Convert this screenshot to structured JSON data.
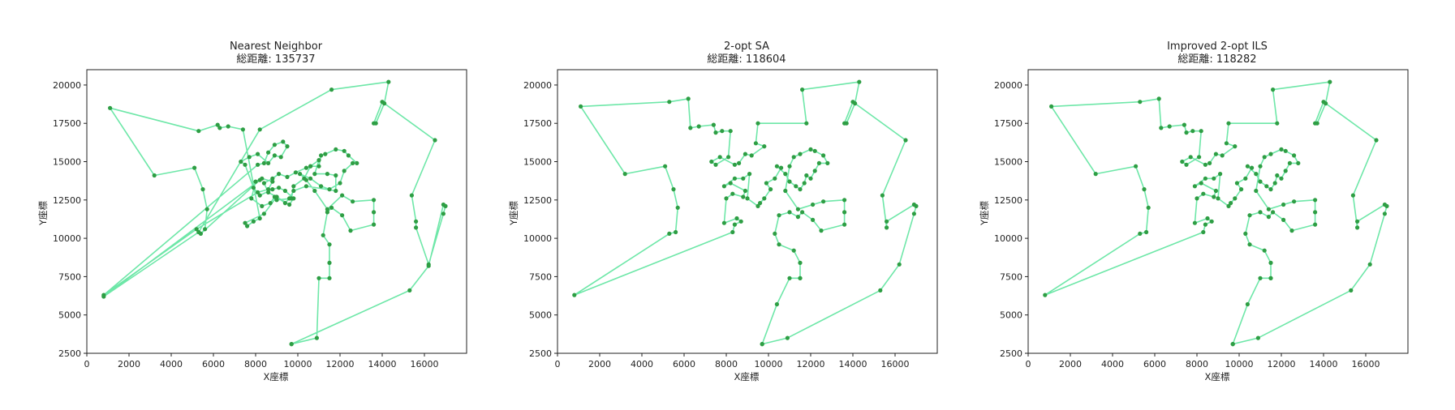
{
  "figure": {
    "colors": {
      "route": "#6ee7a8",
      "point": "#2e9e44",
      "axis": "#222222",
      "background": "#ffffff"
    }
  },
  "chart_data": [
    {
      "type": "line",
      "title": "Nearest Neighbor",
      "subtitle": "総距離: 135737",
      "xlabel": "X座標",
      "ylabel": "Y座標",
      "xlim": [
        0,
        18000
      ],
      "ylim": [
        2500,
        21000
      ],
      "xticks": [
        "0",
        "2000",
        "4000",
        "6000",
        "8000",
        "10000",
        "12000",
        "14000",
        "16000"
      ],
      "yticks": [
        "2500",
        "5000",
        "7500",
        "10000",
        "12500",
        "15000",
        "17500",
        "20000"
      ],
      "grid": false,
      "series": [
        {
          "x": [
            9700,
            10900,
            11000,
            11500,
            11500,
            11500,
            11200,
            11400,
            11600,
            12100,
            12500,
            13600,
            13600,
            13600,
            12600,
            12100,
            11400,
            10800,
            10400,
            10100,
            10600,
            11100,
            11500,
            12000,
            12200,
            12600,
            12800,
            12400,
            12200,
            11800,
            11300,
            11100,
            11000,
            10600,
            10400,
            9900,
            9500,
            9100,
            8800,
            8400,
            8600,
            9000,
            9600,
            9800,
            9400,
            9100,
            8800,
            8200,
            7900,
            7500,
            7300,
            7700,
            8100,
            8600,
            8900,
            9200,
            9500,
            9300,
            8900,
            8600,
            8400,
            8100,
            800,
            5200,
            8100,
            8600,
            8800,
            8300,
            8000,
            7800,
            8300,
            8700,
            8900,
            9000,
            9700,
            9800,
            10300,
            10600,
            11000,
            10800,
            11400,
            11800,
            11800,
            10400,
            9800,
            9600,
            9400,
            9000,
            8400,
            7500,
            7600,
            7900,
            8200,
            7400,
            6700,
            6300,
            6200,
            5300,
            1100,
            3200,
            5100,
            5500,
            5700,
            5600,
            5400,
            8200,
            800,
            5300,
            8200,
            11600,
            14300,
            14100,
            13700,
            13600,
            14000,
            16500,
            15400,
            15600,
            15600,
            16200,
            16900,
            17000,
            16900,
            16200,
            15300,
            9700
          ],
          "y": [
            3100,
            3500,
            7400,
            7400,
            8400,
            9600,
            10200,
            11700,
            12000,
            11500,
            10500,
            10900,
            11700,
            12500,
            12400,
            12800,
            11900,
            13100,
            13800,
            14200,
            13900,
            13400,
            13200,
            13600,
            14400,
            14900,
            14900,
            15400,
            15700,
            15800,
            15500,
            15400,
            14700,
            14700,
            14600,
            14300,
            14000,
            14200,
            13900,
            13600,
            13000,
            12700,
            12200,
            12600,
            13100,
            13300,
            13200,
            12800,
            13300,
            14800,
            15000,
            15300,
            15500,
            14900,
            15400,
            15300,
            16000,
            16300,
            16100,
            15600,
            14900,
            14800,
            6300,
            10600,
            13000,
            13200,
            13700,
            13900,
            13700,
            12600,
            12100,
            12300,
            12700,
            12500,
            12600,
            13400,
            13900,
            14700,
            15100,
            14200,
            14200,
            14100,
            13100,
            13400,
            13100,
            12600,
            12300,
            12700,
            11600,
            11000,
            10800,
            11100,
            11300,
            17100,
            17300,
            17200,
            17400,
            17000,
            18500,
            14100,
            14600,
            13200,
            11900,
            10600,
            10300,
            13800,
            6200,
            10400,
            17100,
            19700,
            20200,
            18800,
            17500,
            17500,
            18900,
            16400,
            12800,
            11100,
            10700,
            8300,
            11600,
            12100,
            12200,
            8200,
            6600,
            3100
          ]
        }
      ]
    },
    {
      "type": "line",
      "title": "2-opt SA",
      "subtitle": "総距離: 118604",
      "xlabel": "X座標",
      "ylabel": "Y座標",
      "xlim": [
        0,
        18000
      ],
      "ylim": [
        2500,
        21000
      ],
      "xticks": [
        "0",
        "2000",
        "4000",
        "6000",
        "8000",
        "10000",
        "12000",
        "14000",
        "16000"
      ],
      "yticks": [
        "2500",
        "5000",
        "7500",
        "10000",
        "12500",
        "15000",
        "17500",
        "20000"
      ],
      "grid": false,
      "series": [
        {
          "x": [
            9700,
            10900,
            15300,
            16200,
            16900,
            17000,
            16900,
            15600,
            15600,
            15400,
            16500,
            14000,
            13600,
            13700,
            14100,
            14300,
            11600,
            11800,
            9500,
            9400,
            9800,
            9200,
            8900,
            8600,
            8400,
            7700,
            7300,
            7500,
            8100,
            8200,
            7800,
            7500,
            7400,
            6700,
            6300,
            6200,
            5300,
            1100,
            3200,
            5100,
            5500,
            5700,
            5600,
            5300,
            800,
            8300,
            8400,
            8700,
            8500,
            7900,
            8000,
            8300,
            8800,
            8900,
            8200,
            7900,
            8400,
            8800,
            9100,
            9000,
            9500,
            9600,
            9800,
            10100,
            9900,
            10300,
            10600,
            10400,
            10800,
            11000,
            11300,
            11500,
            11700,
            11800,
            12000,
            12200,
            12400,
            12800,
            12600,
            12200,
            12000,
            11500,
            11200,
            11000,
            10800,
            11400,
            12100,
            12600,
            13600,
            13600,
            13600,
            12500,
            12100,
            11600,
            11400,
            11000,
            10500,
            10300,
            10500,
            11200,
            11500,
            11500,
            11500,
            11000,
            10400,
            9700
          ],
          "y": [
            3100,
            3500,
            6600,
            8300,
            11600,
            12100,
            12200,
            11100,
            10700,
            12800,
            16400,
            18900,
            17500,
            17500,
            18800,
            20200,
            19700,
            17500,
            17500,
            16200,
            16000,
            15400,
            15500,
            14900,
            14800,
            15300,
            15000,
            14800,
            15300,
            17000,
            17000,
            16900,
            17400,
            17300,
            17200,
            19100,
            18900,
            18600,
            14200,
            14700,
            13200,
            12000,
            10400,
            10300,
            6300,
            10400,
            10900,
            11100,
            11300,
            11000,
            12600,
            12900,
            12700,
            13100,
            13600,
            13400,
            13900,
            13900,
            14200,
            12600,
            12100,
            12300,
            12600,
            13200,
            13600,
            13900,
            14600,
            14700,
            14200,
            13700,
            13400,
            13200,
            13600,
            14100,
            13900,
            14400,
            14900,
            14900,
            15400,
            15700,
            15800,
            15500,
            15300,
            14700,
            13100,
            11900,
            12200,
            12400,
            12500,
            11700,
            10900,
            10500,
            11200,
            11700,
            11400,
            11700,
            11500,
            10300,
            9600,
            9200,
            8400,
            7400,
            7400,
            7400,
            5700,
            3100
          ]
        }
      ]
    },
    {
      "type": "line",
      "title": "Improved 2-opt ILS",
      "subtitle": "総距離: 118282",
      "xlabel": "X座標",
      "ylabel": "Y座標",
      "xlim": [
        0,
        18000
      ],
      "ylim": [
        2500,
        21000
      ],
      "xticks": [
        "0",
        "2000",
        "4000",
        "6000",
        "8000",
        "10000",
        "12000",
        "14000",
        "16000"
      ],
      "yticks": [
        "2500",
        "5000",
        "7500",
        "10000",
        "12500",
        "15000",
        "17500",
        "20000"
      ],
      "grid": false,
      "series": [
        {
          "x": [
            9700,
            10900,
            15300,
            16200,
            16900,
            17000,
            16900,
            15600,
            15600,
            15400,
            16500,
            14000,
            13600,
            13700,
            14100,
            14300,
            11600,
            11800,
            9500,
            9400,
            9800,
            9200,
            8900,
            8600,
            8400,
            7700,
            7300,
            7500,
            8100,
            8200,
            7800,
            7500,
            7400,
            6700,
            6300,
            6200,
            5300,
            1100,
            3200,
            5100,
            5500,
            5700,
            5600,
            5300,
            800,
            8300,
            8400,
            8700,
            8500,
            7900,
            8000,
            8300,
            8800,
            8900,
            8200,
            7900,
            8400,
            8800,
            9100,
            9000,
            9500,
            9600,
            9800,
            10100,
            9900,
            10300,
            10600,
            10400,
            10800,
            11000,
            11300,
            11500,
            11700,
            11800,
            12000,
            12200,
            12400,
            12800,
            12600,
            12200,
            12000,
            11500,
            11200,
            11000,
            10800,
            11400,
            12100,
            12600,
            13600,
            13600,
            13600,
            12500,
            12100,
            11600,
            11400,
            11000,
            10500,
            10300,
            10500,
            11200,
            11500,
            11500,
            11500,
            11000,
            10400,
            9700
          ],
          "y": [
            3100,
            3500,
            6600,
            8300,
            11600,
            12100,
            12200,
            11100,
            10700,
            12800,
            16400,
            18900,
            17500,
            17500,
            18800,
            20200,
            19700,
            17500,
            17500,
            16200,
            16000,
            15400,
            15500,
            14900,
            14800,
            15300,
            15000,
            14800,
            15300,
            17000,
            17000,
            16900,
            17400,
            17300,
            17200,
            19100,
            18900,
            18600,
            14200,
            14700,
            13200,
            12000,
            10400,
            10300,
            6300,
            10400,
            10900,
            11100,
            11300,
            11000,
            12600,
            12900,
            12700,
            13100,
            13600,
            13400,
            13900,
            13900,
            14200,
            12600,
            12100,
            12300,
            12600,
            13200,
            13600,
            13900,
            14600,
            14700,
            14200,
            13700,
            13400,
            13200,
            13600,
            14100,
            13900,
            14400,
            14900,
            14900,
            15400,
            15700,
            15800,
            15500,
            15300,
            14700,
            13100,
            11900,
            12200,
            12400,
            12500,
            11700,
            10900,
            10500,
            11200,
            11700,
            11400,
            11700,
            11500,
            10300,
            9600,
            9200,
            8400,
            7400,
            7400,
            7400,
            5700,
            3100
          ]
        }
      ]
    }
  ]
}
